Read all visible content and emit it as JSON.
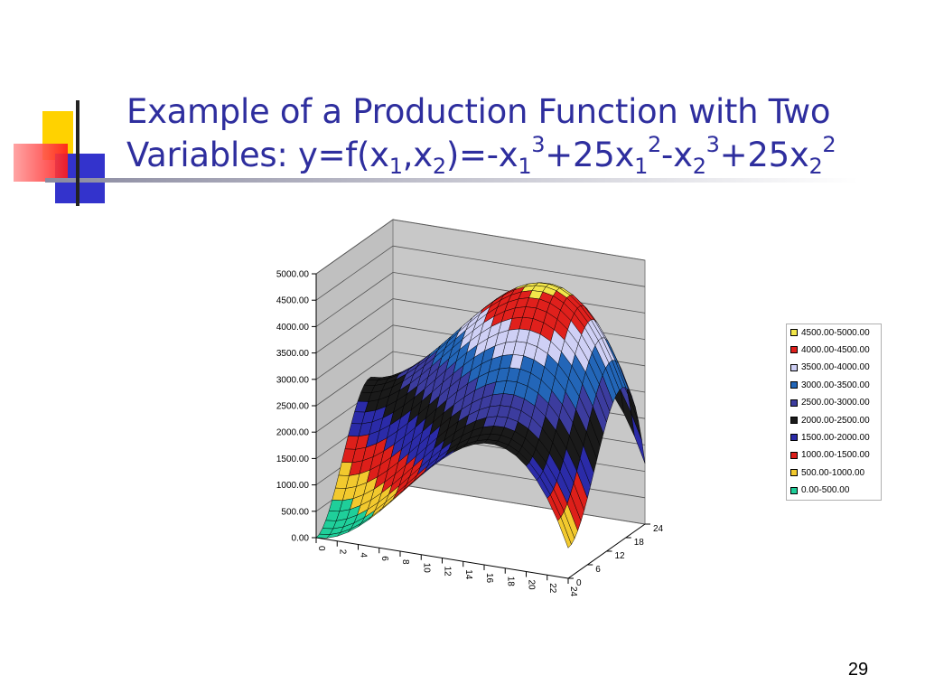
{
  "slide": {
    "title_prefix": "Example of a Production Function with Two Variables: y=f(x",
    "title_sub1": "1",
    "title_mid1": ",x",
    "title_sub2": "2",
    "title_mid2": ")=-x",
    "title_sub3": "1",
    "title_sup3": "3",
    "title_mid3": "+25x",
    "title_sub4": "1",
    "title_sup4": "2",
    "title_mid4": "-x",
    "title_sub5": "2",
    "title_sup5": "3",
    "title_mid5": "+25x",
    "title_sub6": "2",
    "title_sup6": "2",
    "page_number": "29"
  },
  "chart_data": {
    "type": "surface",
    "function": "y=-x1^3+25x1^2-x2^3+25x2^2",
    "x1_ticks": [
      "0",
      "2",
      "4",
      "6",
      "8",
      "10",
      "12",
      "14",
      "16",
      "18",
      "20",
      "22",
      "24"
    ],
    "x2_ticks": [
      "0",
      "6",
      "12",
      "18",
      "24"
    ],
    "x1_range": [
      0,
      24
    ],
    "x2_range": [
      0,
      24
    ],
    "z_ticks": [
      "0.00",
      "500.00",
      "1000.00",
      "1500.00",
      "2000.00",
      "2500.00",
      "3000.00",
      "3500.00",
      "4000.00",
      "4500.00",
      "5000.00"
    ],
    "zlim": [
      0,
      5000
    ],
    "legend": [
      {
        "label": "4500.00-5000.00",
        "color": "#f2e64a"
      },
      {
        "label": "4000.00-4500.00",
        "color": "#e0201c"
      },
      {
        "label": "3500.00-4000.00",
        "color": "#cfd0f5"
      },
      {
        "label": "3000.00-3500.00",
        "color": "#2366b8"
      },
      {
        "label": "2500.00-3000.00",
        "color": "#3c3c9e"
      },
      {
        "label": "2000.00-2500.00",
        "color": "#1a1a1a"
      },
      {
        "label": "1500.00-2000.00",
        "color": "#2b2ba8"
      },
      {
        "label": "1000.00-1500.00",
        "color": "#dd1f1a"
      },
      {
        "label": "500.00-1000.00",
        "color": "#f2c92e"
      },
      {
        "label": "0.00-500.00",
        "color": "#1fcf9a"
      }
    ],
    "legend_position": "right"
  }
}
